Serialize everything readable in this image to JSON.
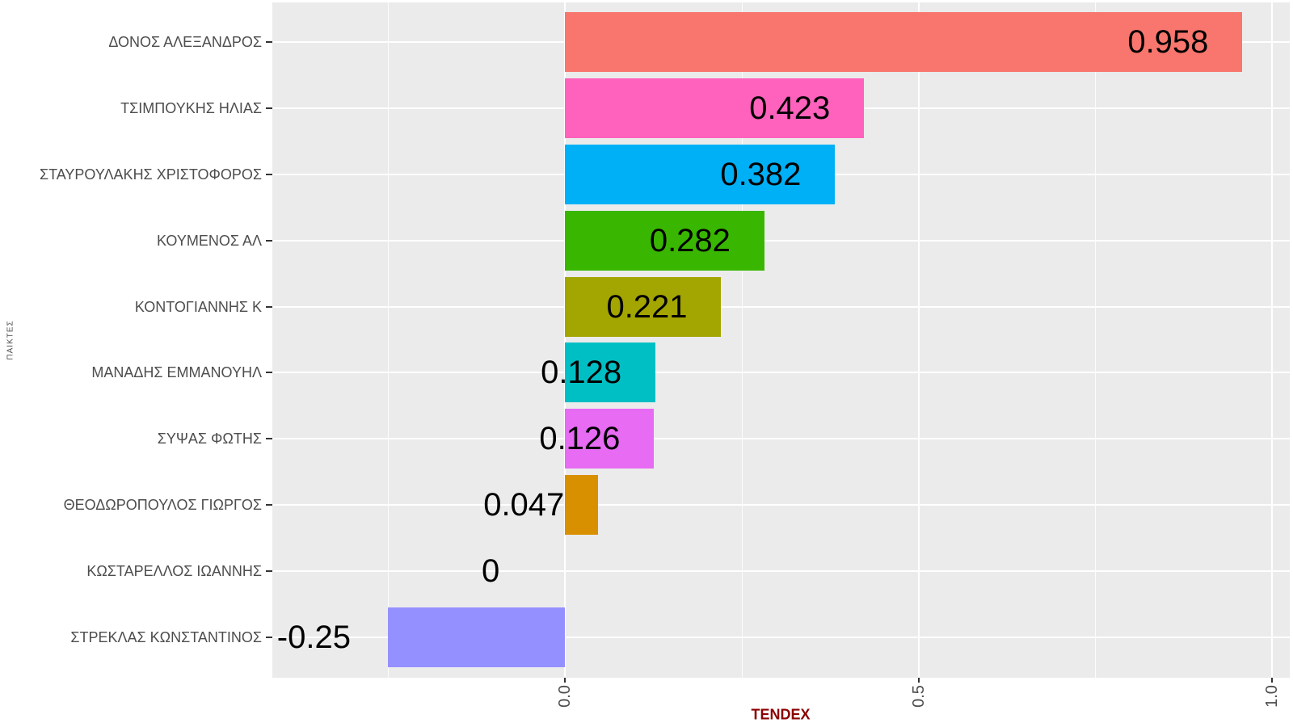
{
  "chart_data": {
    "type": "bar",
    "orientation": "horizontal",
    "title": "",
    "xlabel": "TENDEX",
    "ylabel": "ΠΑΙΚΤΕΣ",
    "categories": [
      "ΔΟΝΟΣ ΑΛΕΞΑΝΔΡΟΣ",
      "ΤΣΙΜΠΟΥΚΗΣ ΗΛΙΑΣ",
      "ΣΤΑΥΡΟΥΛΑΚΗΣ ΧΡΙΣΤΟΦΟΡΟΣ",
      "ΚΟΥΜΕΝΟΣ ΑΛ",
      "ΚΟΝΤΟΓΙΑΝΝΗΣ Κ",
      "ΜΑΝΑΔΗΣ ΕΜΜΑΝΟΥΗΛ",
      "ΣΥΨΑΣ ΦΩΤΗΣ",
      "ΘΕΟΔΩΡΟΠΟΥΛΟΣ ΓΙΩΡΓΟΣ",
      "ΚΩΣΤΑΡΕΛΛΟΣ ΙΩΑΝΝΗΣ",
      "ΣΤΡΕΚΛΑΣ ΚΩΝΣΤΑΝΤΙΝΟΣ"
    ],
    "values": [
      0.958,
      0.423,
      0.382,
      0.282,
      0.221,
      0.128,
      0.126,
      0.047,
      0,
      -0.25
    ],
    "value_labels": [
      "0.958",
      "0.423",
      "0.382",
      "0.282",
      "0.221",
      "0.128",
      "0.126",
      "0.047",
      "0",
      "-0.25"
    ],
    "bar_colors": [
      "#F8766D",
      "#FF62BC",
      "#00B0F6",
      "#39B600",
      "#A3A500",
      "#00BFC4",
      "#E76BF3",
      "#D89000",
      null,
      "#9590FF"
    ],
    "x_ticks": {
      "labels": [
        "0.0",
        "0.5",
        "1.0"
      ],
      "values": [
        0,
        0.5,
        1
      ]
    },
    "x_minor_gridlines": [
      -0.25,
      0.25,
      0.75
    ],
    "xlim": [
      -0.414,
      1.025
    ],
    "grid": true,
    "legend": false,
    "styles": {
      "panel_bg": "#EBEBEB",
      "grid_major": "#FFFFFF",
      "grid_minor": "#F5F5F5",
      "axis_text_color": "#4D4D4D",
      "tick_color": "#333333",
      "value_label_color": "#000000",
      "xlabel_color": "#8B0000",
      "value_label_nudge_x": -0.105
    }
  }
}
